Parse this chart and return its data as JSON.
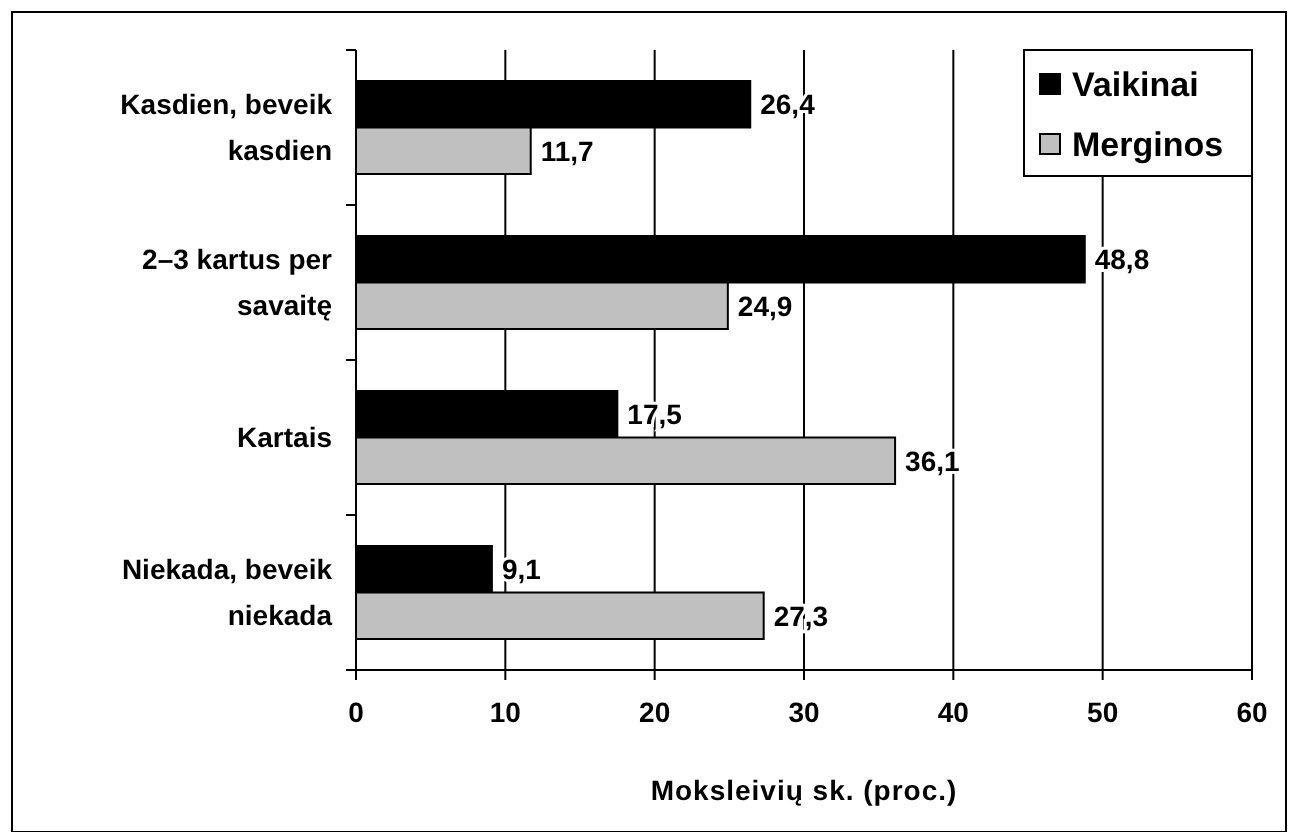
{
  "chart_data": {
    "type": "bar",
    "orientation": "horizontal",
    "xlabel": "Moksleivių sk. (proc.)",
    "categories": [
      "Kasdien, beveik\nkasdien",
      "2–3 kartus per\nsavaitę",
      "Kartais",
      "Niekada, beveik\nniekada"
    ],
    "series": [
      {
        "name": "Vaikinai",
        "color": "#000000",
        "values": [
          26.4,
          48.8,
          17.5,
          9.1
        ],
        "value_labels": [
          "26,4",
          "48,8",
          "17,5",
          "9,1"
        ]
      },
      {
        "name": "Merginos",
        "color": "#c0c0c0",
        "values": [
          11.7,
          24.9,
          36.1,
          27.3
        ],
        "value_labels": [
          "11,7",
          "24,9",
          "36,1",
          "27,3"
        ]
      }
    ],
    "xlim": [
      0,
      60
    ],
    "xticks": [
      0,
      10,
      20,
      30,
      40,
      50,
      60
    ],
    "grid": "x",
    "legend": "top right"
  }
}
